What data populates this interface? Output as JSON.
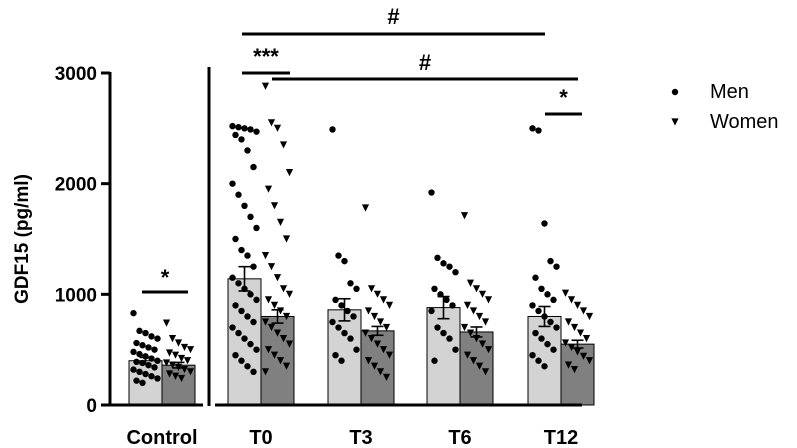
{
  "chart_data": {
    "type": "bar",
    "ylabel": "GDF15 (pg/ml)",
    "ylim": [
      0,
      3000
    ],
    "yticks": [
      0,
      1000,
      2000,
      3000
    ],
    "categories": [
      "Control",
      "T0",
      "T3",
      "T6",
      "T12"
    ],
    "series": [
      {
        "name": "Men",
        "marker": "circle",
        "color": "#d3d3d3",
        "values": [
          400,
          1140,
          860,
          880,
          800
        ],
        "sem": [
          30,
          110,
          100,
          100,
          90
        ],
        "points": [
          [
            830,
            670,
            650,
            620,
            600,
            560,
            540,
            520,
            500,
            480,
            460,
            440,
            420,
            400,
            390,
            380,
            360,
            340,
            320,
            300,
            280,
            260,
            240,
            220,
            200
          ],
          [
            2520,
            2510,
            2500,
            2490,
            2470,
            2440,
            2400,
            2300,
            2150,
            2000,
            1900,
            1800,
            1700,
            1600,
            1500,
            1400,
            1350,
            1250,
            1150,
            1100,
            1050,
            1000,
            950,
            900,
            850,
            800,
            750,
            700,
            650,
            600,
            550,
            500,
            450,
            400,
            350,
            300
          ],
          [
            2490,
            1350,
            1300,
            1100,
            1050,
            950,
            900,
            850,
            800,
            750,
            700,
            650,
            600,
            500,
            450,
            400
          ],
          [
            1920,
            1330,
            1280,
            1250,
            1200,
            1050,
            1000,
            950,
            900,
            850,
            700,
            650,
            600,
            500,
            400
          ],
          [
            2500,
            2480,
            1640,
            1300,
            1250,
            1150,
            1050,
            1000,
            950,
            900,
            850,
            800,
            750,
            700,
            650,
            600,
            550,
            500,
            450,
            400,
            350
          ]
        ]
      },
      {
        "name": "Women",
        "marker": "triangle-down",
        "color": "#808080",
        "values": [
          360,
          800,
          670,
          660,
          550
        ],
        "sem": [
          25,
          60,
          40,
          45,
          35
        ],
        "points": [
          [
            740,
            600,
            560,
            520,
            500,
            470,
            450,
            420,
            400,
            380,
            360,
            340,
            320,
            300,
            280,
            260,
            240
          ],
          [
            2880,
            2550,
            2500,
            2350,
            2100,
            1950,
            1800,
            1650,
            1500,
            1350,
            1250,
            1150,
            1050,
            1000,
            950,
            900,
            850,
            800,
            750,
            700,
            650,
            600,
            550,
            500,
            450,
            400,
            350,
            300
          ],
          [
            1780,
            1050,
            1000,
            950,
            900,
            850,
            800,
            750,
            700,
            650,
            600,
            550,
            500,
            450,
            400,
            350,
            300,
            250
          ],
          [
            1710,
            1100,
            1050,
            1000,
            950,
            900,
            850,
            800,
            750,
            700,
            650,
            600,
            550,
            500,
            450,
            400,
            350,
            300
          ],
          [
            1010,
            950,
            900,
            850,
            800,
            750,
            700,
            650,
            600,
            560,
            520,
            480,
            440,
            400,
            360,
            320
          ]
        ]
      }
    ],
    "annotations": [
      {
        "label": "*",
        "from": "Control/Men",
        "to": "Control/Women"
      },
      {
        "label": "***",
        "from": "T0/Men",
        "to": "T0/Women"
      },
      {
        "label": "#",
        "from": "T0/Men",
        "to": "T12/Men"
      },
      {
        "label": "#",
        "from": "T0/Women",
        "to": "T12/Women"
      },
      {
        "label": "*",
        "from": "T12/Men",
        "to": "T12/Women"
      }
    ],
    "legend": {
      "position": "top-right",
      "entries": [
        "Men",
        "Women"
      ]
    },
    "grid": false
  }
}
